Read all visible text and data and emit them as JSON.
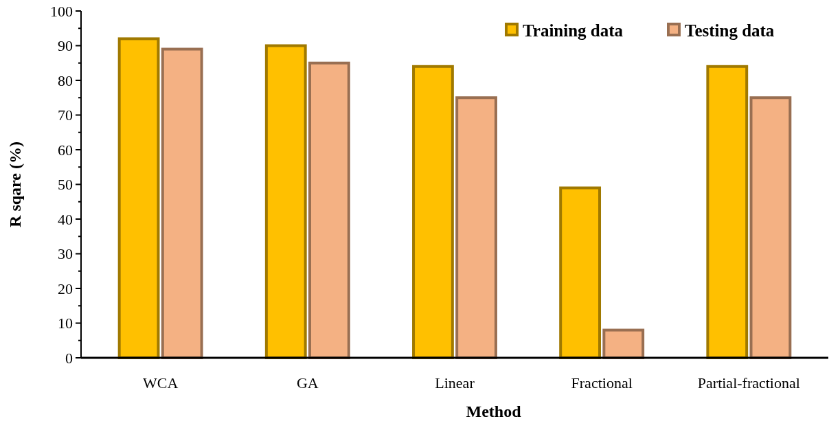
{
  "chart_data": {
    "type": "bar",
    "xlabel": "Method",
    "ylabel": "R sqare (%)",
    "categories": [
      "WCA",
      "GA",
      "Linear",
      "Fractional",
      "Partial-fractional"
    ],
    "series": [
      {
        "name": "Training data",
        "color": "#ffc000",
        "values": [
          92,
          90,
          84,
          49,
          84
        ]
      },
      {
        "name": "Testing data",
        "color": "#f4b183",
        "values": [
          89,
          85,
          75,
          8,
          75
        ]
      }
    ],
    "ylim": [
      0,
      100
    ],
    "yticks": [
      0,
      {
        "value": 5,
        "label": null
      },
      10,
      {
        "value": 15,
        "label": null
      },
      20,
      {
        "value": 25,
        "label": null
      },
      30,
      {
        "value": 35,
        "label": null
      },
      40,
      {
        "value": 45,
        "label": null
      },
      50,
      {
        "value": 55,
        "label": null
      },
      60,
      {
        "value": 65,
        "label": null
      },
      70,
      {
        "value": 75,
        "label": null
      },
      80,
      {
        "value": 85,
        "label": null
      },
      90,
      {
        "value": 95,
        "label": null
      },
      100
    ],
    "grid": false,
    "legend": "top right"
  }
}
